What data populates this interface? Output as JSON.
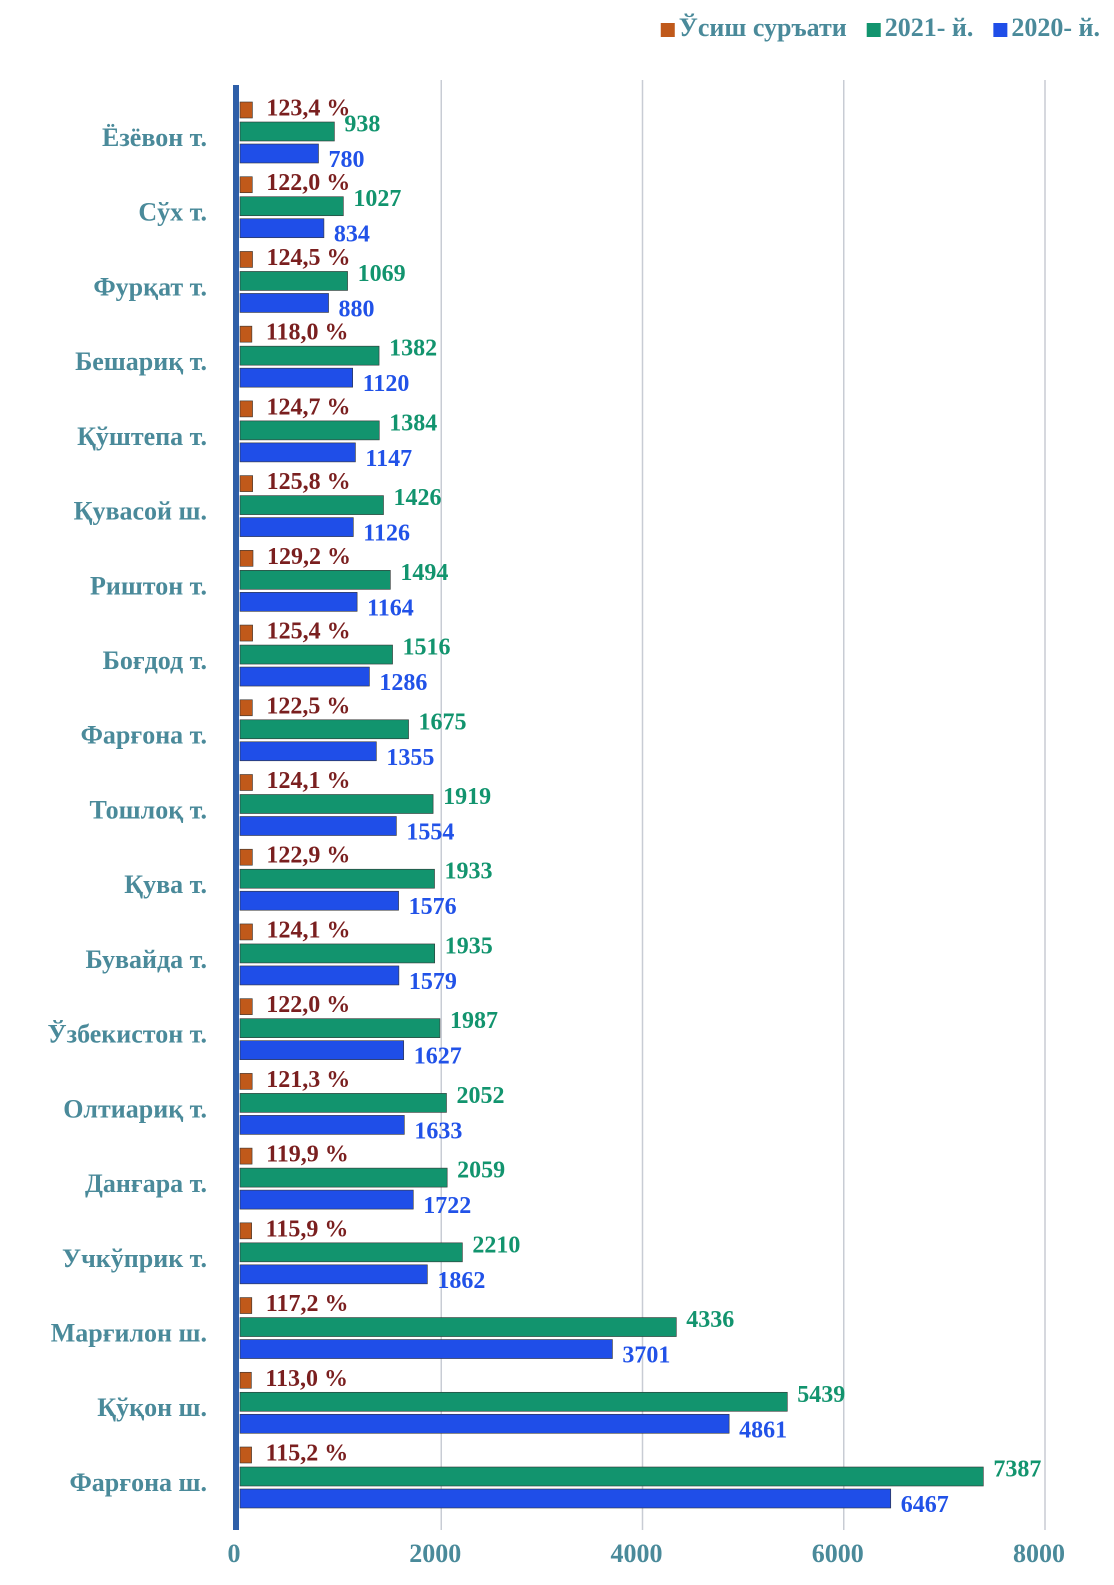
{
  "chart_data": {
    "type": "bar",
    "orientation": "horizontal",
    "categories": [
      "Ёзёвон т.",
      "Сўх т.",
      "Фурқат т.",
      "Бешариқ т.",
      "Қўштепа т.",
      "Қувасой ш.",
      "Риштон т.",
      "Боғдод т.",
      "Фарғона т.",
      "Тошлоқ т.",
      "Қува т.",
      "Бувайда т.",
      "Ўзбекистон т.",
      "Олтиариқ т.",
      "Данғара т.",
      "Учкўприк т.",
      "Марғилон ш.",
      "Қўқон ш.",
      "Фарғона ш."
    ],
    "series": [
      {
        "name": "Ўсиш суръати",
        "color": "#c0591a",
        "label_color": "#7a1f1f",
        "values": [
          123.4,
          122.0,
          124.5,
          118.0,
          124.7,
          125.8,
          129.2,
          125.4,
          122.5,
          124.1,
          122.9,
          124.1,
          122.0,
          121.3,
          119.9,
          115.9,
          117.2,
          113.0,
          115.2
        ],
        "value_labels": [
          "123,4 %",
          "122,0 %",
          "124,5 %",
          "118,0 %",
          "124,7 %",
          "125,8 %",
          "129,2 %",
          "125,4 %",
          "122,5 %",
          "124,1 %",
          "122,9 %",
          "124,1 %",
          "122,0 %",
          "121,3 %",
          "119,9 %",
          "115,9 %",
          "117,2 %",
          "113,0 %",
          "115,2 %"
        ]
      },
      {
        "name": "2021- й.",
        "color": "#12946e",
        "label_color": "#12946e",
        "values": [
          938,
          1027,
          1069,
          1382,
          1384,
          1426,
          1494,
          1516,
          1675,
          1919,
          1933,
          1935,
          1987,
          2052,
          2059,
          2210,
          4336,
          5439,
          7387
        ]
      },
      {
        "name": "2020- й.",
        "color": "#1f4ee8",
        "label_color": "#2152e8",
        "values": [
          780,
          834,
          880,
          1120,
          1147,
          1126,
          1164,
          1286,
          1355,
          1554,
          1576,
          1579,
          1627,
          1633,
          1722,
          1862,
          3701,
          4861,
          6467
        ]
      }
    ],
    "xlim": [
      0,
      8000
    ],
    "xticks": [
      0,
      2000,
      4000,
      6000,
      8000
    ],
    "grid": true,
    "legend": "top-right"
  }
}
